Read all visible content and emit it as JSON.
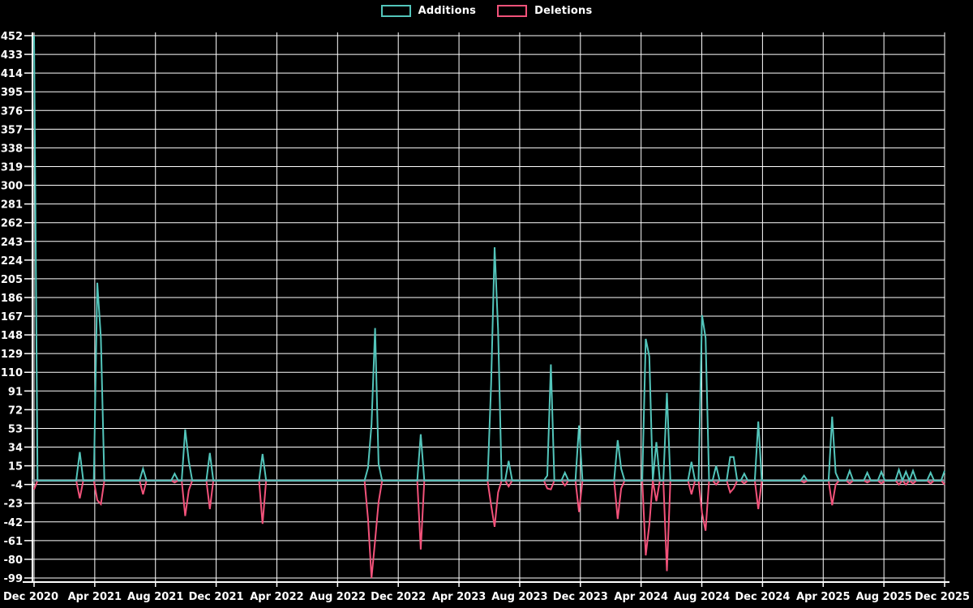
{
  "colors": {
    "background": "#000000",
    "grid": "#ffffff",
    "axis": "#ffffff",
    "text": "#ffffff",
    "additions": "#53c5bb",
    "deletions": "#f2527a",
    "zero_line": "#7e8f9a"
  },
  "legend": {
    "items": [
      {
        "label": "Additions",
        "color": "#53c5bb"
      },
      {
        "label": "Deletions",
        "color": "#f2527a"
      }
    ]
  },
  "chart_data": {
    "type": "line",
    "title": "",
    "xlabel": "",
    "ylabel": "",
    "legend_position": "top-center",
    "grid": true,
    "ylim": [
      -99,
      452
    ],
    "y_tick_step": 19,
    "y_ticks": [
      452,
      433,
      414,
      395,
      376,
      357,
      338,
      319,
      300,
      281,
      262,
      243,
      224,
      205,
      186,
      167,
      148,
      129,
      110,
      91,
      72,
      53,
      34,
      15,
      -4,
      -23,
      -42,
      -61,
      -80,
      -99
    ],
    "x_tick_labels": [
      "Dec 2020",
      "Apr 2021",
      "Aug 2021",
      "Dec 2021",
      "Apr 2022",
      "Aug 2022",
      "Dec 2022",
      "Apr 2023",
      "Aug 2023",
      "Dec 2023",
      "Apr 2024",
      "Aug 2024",
      "Dec 2024",
      "Apr 2025",
      "Aug 2025",
      "Dec 2025"
    ],
    "n_points": 260,
    "x_unit": "week",
    "zero_baseline": {
      "value": 0,
      "color": "#7e8f9a"
    },
    "series": [
      {
        "name": "Additions",
        "color": "#53c5bb",
        "default_value": 0,
        "points": {
          "0": 452,
          "13": 29,
          "18": 201,
          "19": 145,
          "31": 12,
          "40": 7,
          "43": 52,
          "44": 20,
          "50": 28,
          "65": 27,
          "95": 13,
          "96": 57,
          "97": 155,
          "98": 17,
          "110": 47,
          "130": 98,
          "131": 237,
          "132": 153,
          "135": 20,
          "146": 5,
          "147": 118,
          "151": 8,
          "155": 56,
          "166": 41,
          "167": 12,
          "174": 144,
          "175": 126,
          "177": 39,
          "180": 89,
          "187": 19,
          "190": 168,
          "191": 145,
          "194": 15,
          "198": 24,
          "199": 24,
          "202": 7,
          "206": 60,
          "219": 5,
          "227": 65,
          "228": 8,
          "232": 10,
          "237": 8,
          "241": 9,
          "246": 11,
          "248": 9,
          "250": 10,
          "255": 8,
          "259": 10
        }
      },
      {
        "name": "Deletions",
        "color": "#f2527a",
        "default_value": 0,
        "points": {
          "0": -9,
          "13": -18,
          "18": -20,
          "19": -24,
          "31": -14,
          "40": -2,
          "43": -36,
          "44": -10,
          "50": -29,
          "65": -44,
          "95": -39,
          "96": -99,
          "97": -61,
          "98": -22,
          "110": -70,
          "130": -25,
          "131": -47,
          "132": -12,
          "135": -6,
          "146": -8,
          "147": -9,
          "151": -5,
          "155": -32,
          "166": -39,
          "167": -8,
          "174": -76,
          "175": -45,
          "177": -21,
          "180": -92,
          "187": -14,
          "190": -33,
          "191": -51,
          "194": -4,
          "198": -12,
          "199": -8,
          "202": -3,
          "206": -29,
          "219": -2,
          "227": -25,
          "228": -4,
          "232": -3,
          "237": -2,
          "241": -3,
          "246": -4,
          "248": -4,
          "250": -3,
          "255": -3,
          "259": -4
        }
      }
    ]
  }
}
